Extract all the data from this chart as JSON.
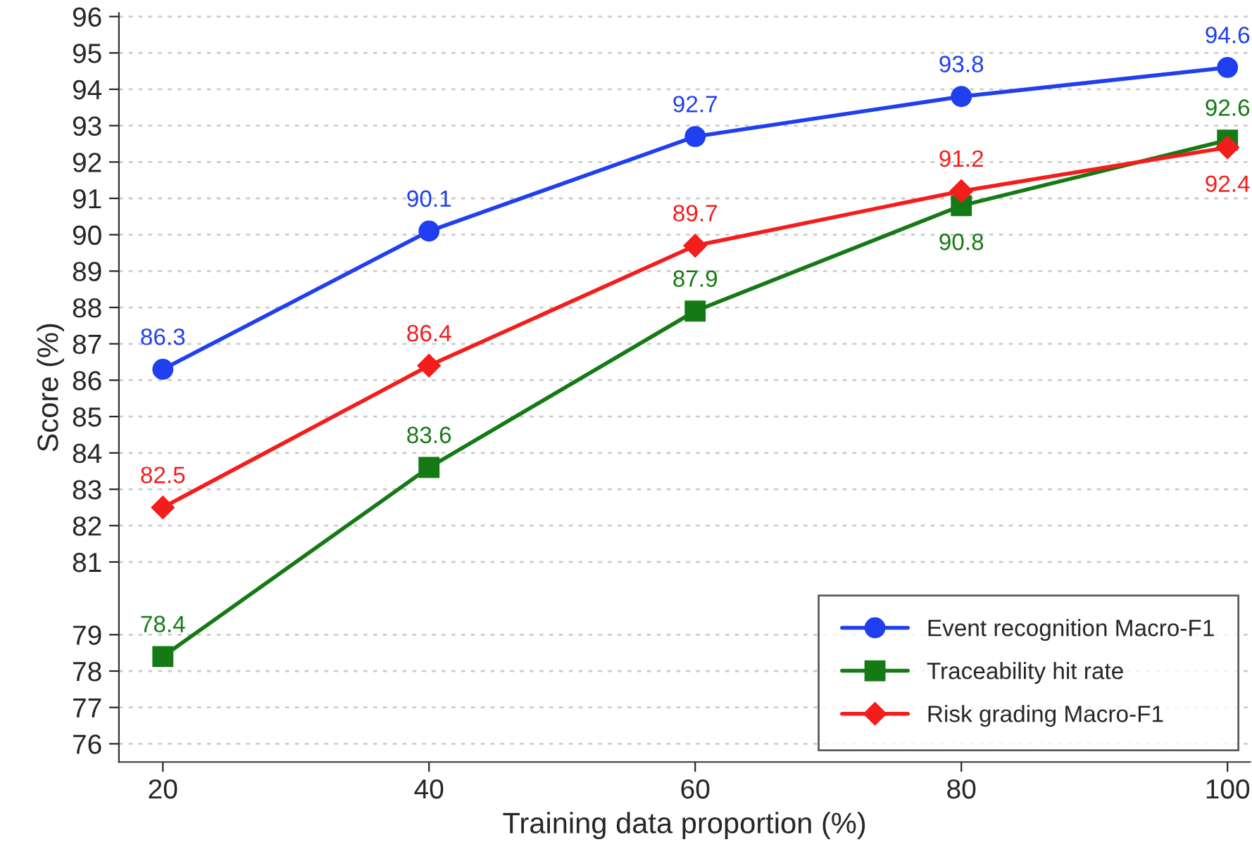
{
  "chart_data": {
    "type": "line",
    "xlabel": "Training data proportion (%)",
    "ylabel": "Score (%)",
    "x": [
      20,
      40,
      60,
      80,
      100
    ],
    "series": [
      {
        "name": "Event recognition Macro-F1",
        "color": "#1f3ff0",
        "marker": "circle",
        "values": [
          86.3,
          90.1,
          92.7,
          93.8,
          94.6
        ]
      },
      {
        "name": "Traceability hit rate",
        "color": "#157a15",
        "marker": "square",
        "values": [
          78.4,
          83.6,
          87.9,
          90.8,
          92.6
        ]
      },
      {
        "name": "Risk grading Macro-F1",
        "color": "#f51c1c",
        "marker": "diamond",
        "values": [
          82.5,
          86.4,
          89.7,
          91.2,
          92.4
        ]
      }
    ],
    "xlim": [
      16.7,
      101.7
    ],
    "xticks": [
      20,
      40,
      60,
      80,
      100
    ],
    "ylim": [
      75.5,
      96.1
    ],
    "yticks": [
      76,
      77,
      78,
      79,
      81,
      82,
      83,
      84,
      85,
      86,
      87,
      88,
      89,
      90,
      91,
      92,
      93,
      94,
      95,
      96
    ],
    "data_labels": true,
    "grid": "y",
    "legend": "bottom right",
    "line_style": "solid"
  }
}
